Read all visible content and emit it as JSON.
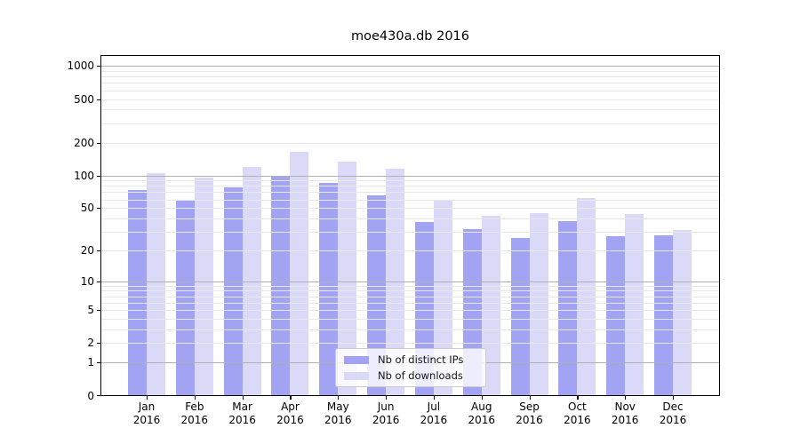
{
  "title": "moe430a.db 2016",
  "chart_data": {
    "type": "bar",
    "title": "moe430a.db 2016",
    "categories": [
      "Jan 2016",
      "Feb 2016",
      "Mar 2016",
      "Apr 2016",
      "May 2016",
      "Jun 2016",
      "Jul 2016",
      "Aug 2016",
      "Sep 2016",
      "Oct 2016",
      "Nov 2016",
      "Dec 2016"
    ],
    "months": [
      "Jan",
      "Feb",
      "Mar",
      "Apr",
      "May",
      "Jun",
      "Jul",
      "Aug",
      "Sep",
      "Oct",
      "Nov",
      "Dec"
    ],
    "year": "2016",
    "series": [
      {
        "name": "Nb of distinct IPs",
        "color": "#a3a3f3",
        "values": [
          74,
          58,
          78,
          97,
          85,
          65,
          37,
          32,
          26,
          38,
          27,
          28
        ]
      },
      {
        "name": "Nb of downloads",
        "color": "#dadaf8",
        "values": [
          104,
          96,
          120,
          165,
          134,
          116,
          58,
          42,
          45,
          62,
          44,
          31
        ]
      }
    ],
    "xlabel": "",
    "ylabel": "",
    "yscale": "log1p",
    "yticks": [
      0,
      1,
      2,
      5,
      10,
      20,
      50,
      100,
      200,
      500,
      1000
    ],
    "major_gridlines": [
      1,
      10,
      100,
      1000
    ],
    "minor_gridlines": [
      2,
      3,
      4,
      5,
      6,
      7,
      8,
      9,
      20,
      30,
      40,
      50,
      60,
      70,
      80,
      90,
      200,
      300,
      400,
      500,
      600,
      700,
      800,
      900
    ],
    "ylim": [
      0,
      1250
    ],
    "grid": true,
    "grid_above_bars": true,
    "legend_position": "lower center"
  },
  "colors": {
    "bar_distinct_ips": "#a3a3f3",
    "bar_downloads": "#dadaf8",
    "major_grid": "#b0b0b0",
    "minor_grid": "#e8e8e8",
    "spine": "#000000",
    "text": "#000000",
    "legend_border": "#cccccc",
    "legend_background": "rgba(255,255,255,0.8)"
  }
}
